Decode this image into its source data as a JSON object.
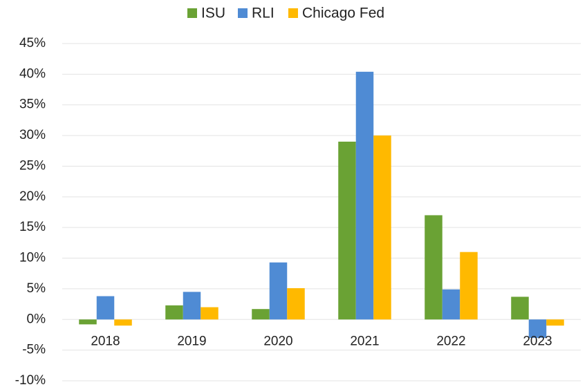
{
  "chart_data": {
    "type": "bar",
    "categories": [
      "2018",
      "2019",
      "2020",
      "2021",
      "2022",
      "2023"
    ],
    "series": [
      {
        "name": "ISU",
        "color": "#6aa234",
        "values": [
          -0.8,
          2.3,
          1.7,
          29.0,
          17.0,
          3.7
        ]
      },
      {
        "name": "RLI",
        "color": "#4f8bd4",
        "values": [
          3.8,
          4.5,
          9.3,
          40.4,
          4.9,
          -3.0
        ]
      },
      {
        "name": "Chicago Fed",
        "color": "#ffb900",
        "values": [
          -1.0,
          2.0,
          5.1,
          30.0,
          11.0,
          -1.0
        ]
      }
    ],
    "ylim": [
      -10,
      45
    ],
    "yticks": [
      {
        "value": -10,
        "label": "-10%"
      },
      {
        "value": -5,
        "label": "-5%"
      },
      {
        "value": 0,
        "label": "0%"
      },
      {
        "value": 5,
        "label": "5%"
      },
      {
        "value": 10,
        "label": "10%"
      },
      {
        "value": 15,
        "label": "15%"
      },
      {
        "value": 20,
        "label": "20%"
      },
      {
        "value": 25,
        "label": "25%"
      },
      {
        "value": 30,
        "label": "30%"
      },
      {
        "value": 35,
        "label": "35%"
      },
      {
        "value": 40,
        "label": "40%"
      },
      {
        "value": 45,
        "label": "45%"
      }
    ],
    "grid": true,
    "legend": "top"
  }
}
